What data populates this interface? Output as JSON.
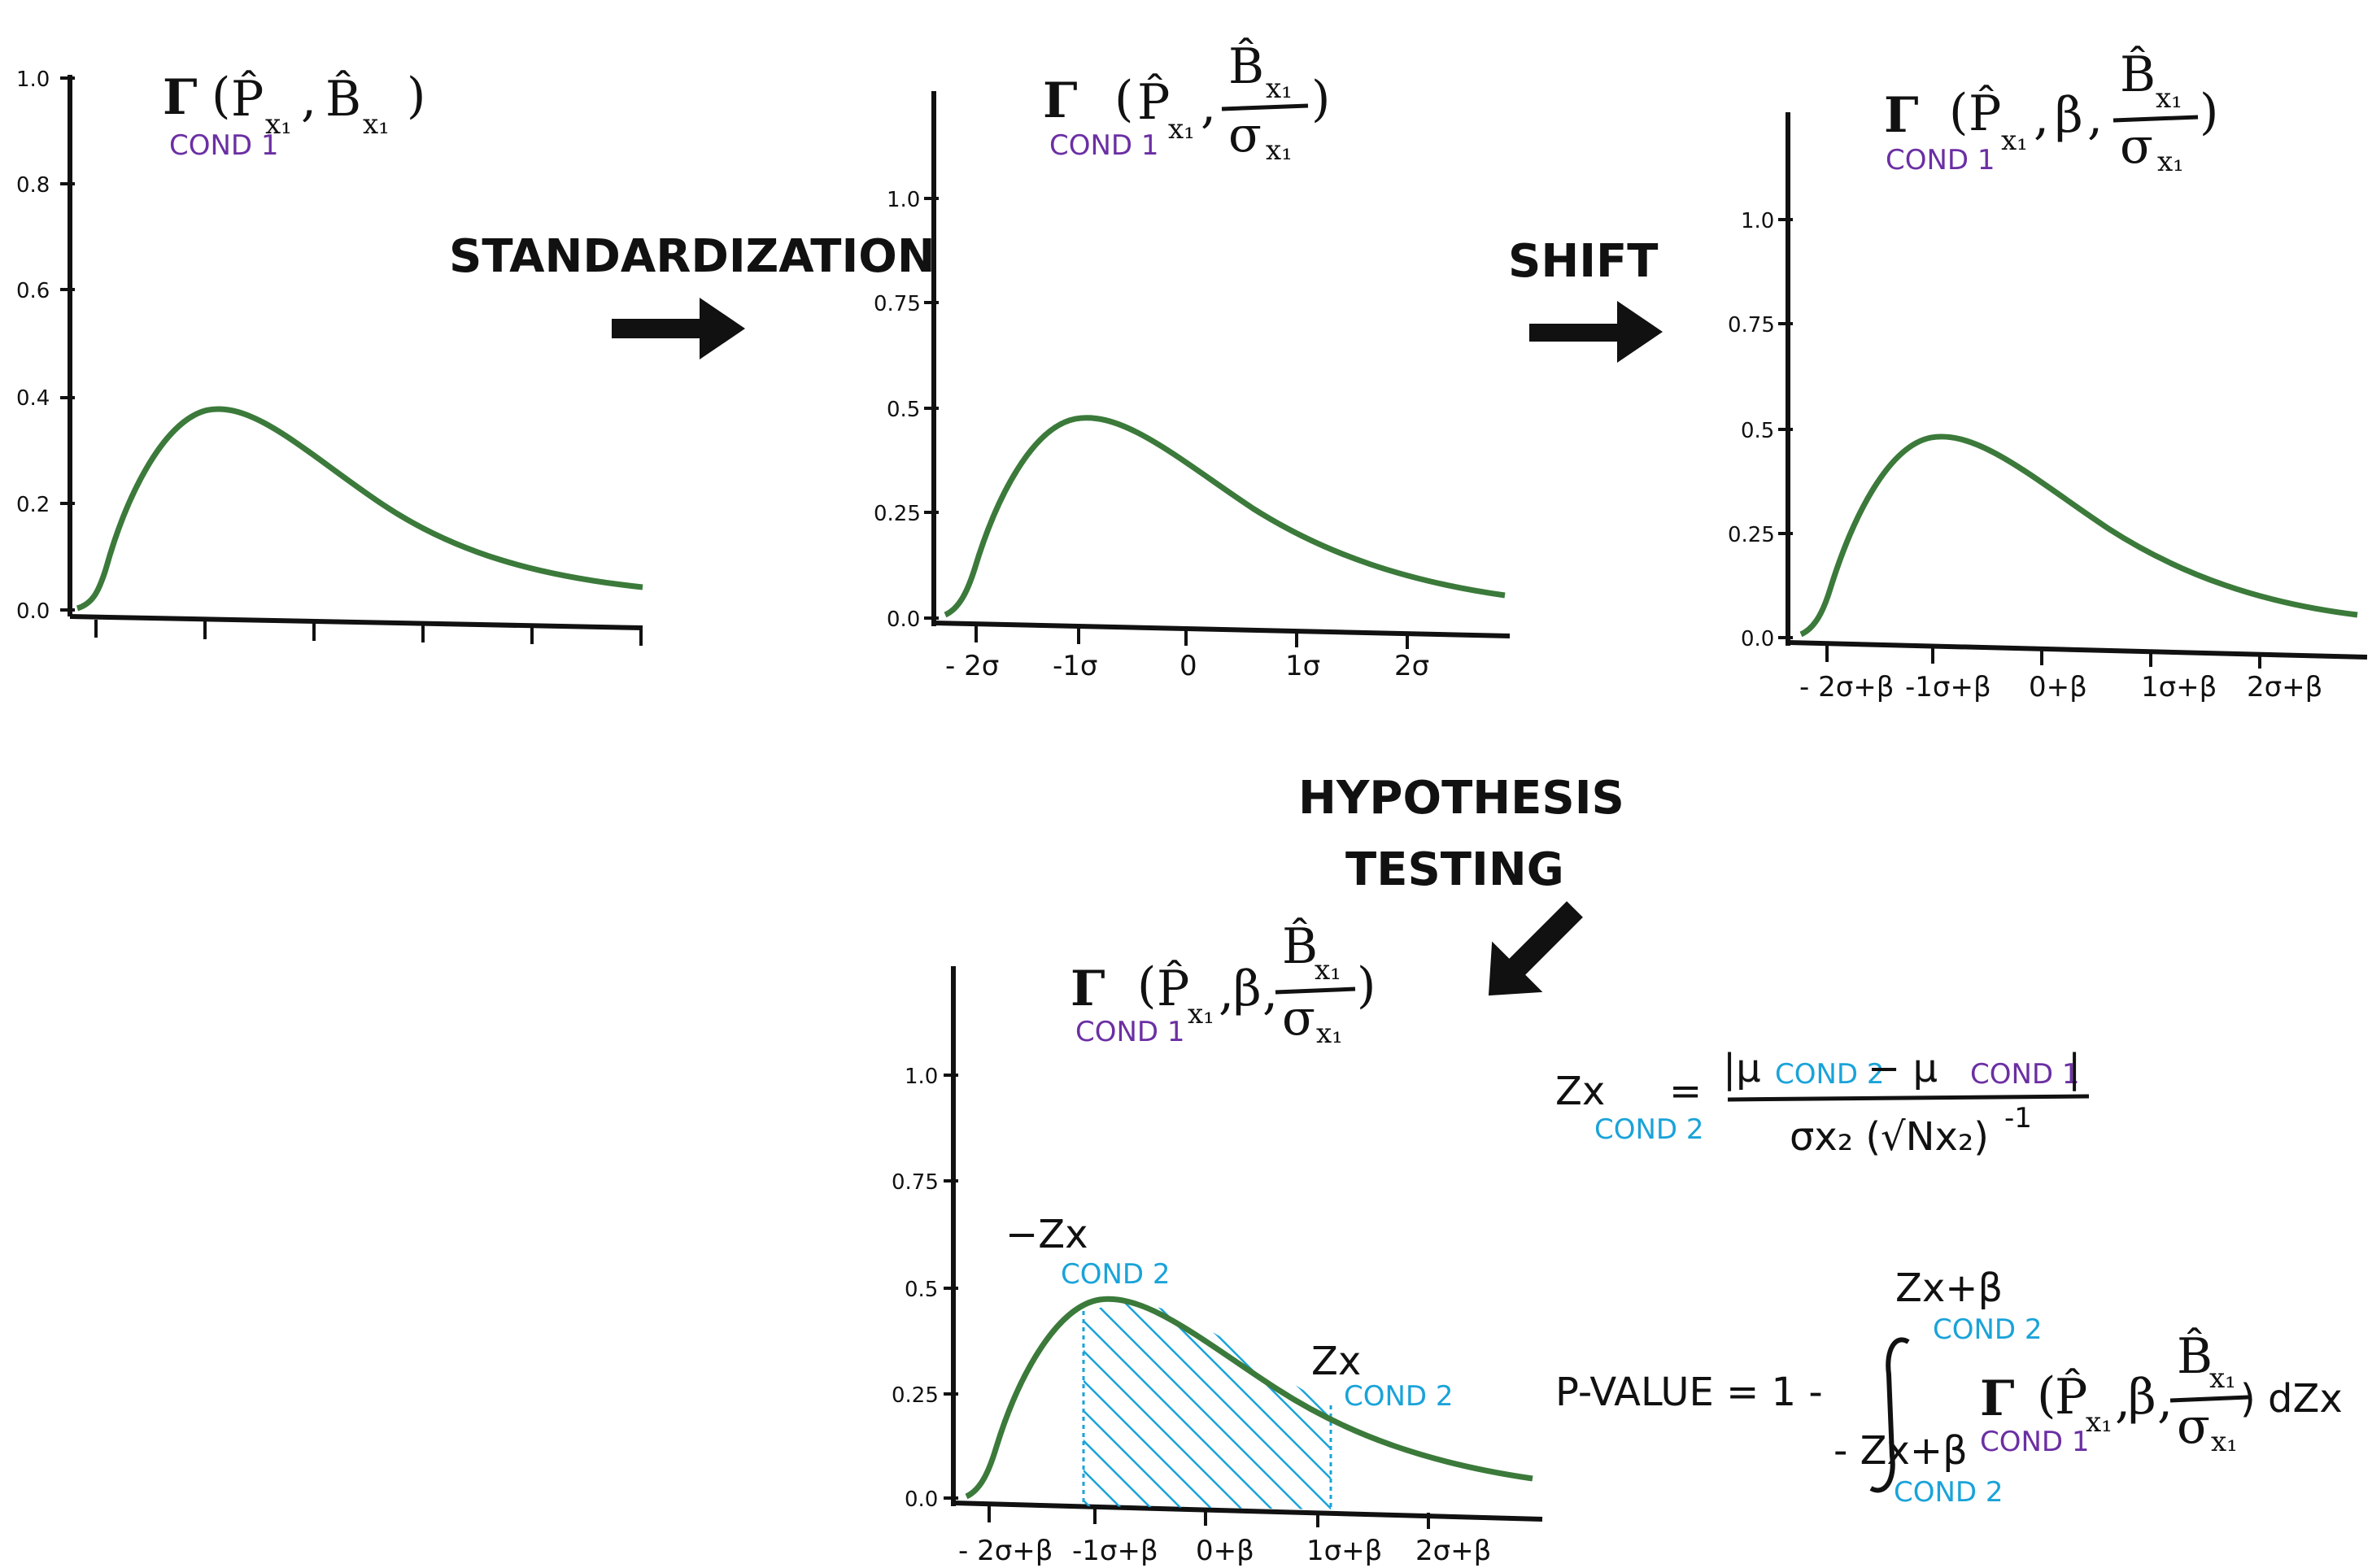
{
  "colors": {
    "curve": "#3b7a3a",
    "cond1": "#6b2fa3",
    "cond2": "#1aa3d9",
    "ink": "#111111"
  },
  "labels": {
    "standardization": "STANDARDIZATION",
    "shift": "SHIFT",
    "hypothesis": "HYPOTHESIS",
    "testing": "TESTING"
  },
  "math": {
    "gamma": "Γ",
    "p_hat": "P̂",
    "b_hat": "B̂",
    "x1": "x₁",
    "beta": "β",
    "sigma": "σ",
    "sigma_x1": "σx₁",
    "cond1": "COND 1",
    "cond2": "COND 2",
    "neg_z": "−Zx",
    "z": "Zx"
  },
  "equations": {
    "z_lhs": "Zx",
    "equals": "=",
    "z_numerator": "|μ",
    "z_num_mid": " − μ",
    "z_num_end": "|",
    "z_denominator": "σx₂ (√Nx₂)",
    "z_exponent": "-1",
    "pvalue_label": "P-VALUE = 1 -",
    "integral_upper": "Zx+β",
    "integral_lower": "- Zx+β",
    "integrand_end": ") dZx"
  },
  "panels": [
    {
      "id": "gamma",
      "y_ticks": [
        "0.0",
        "0.2",
        "0.4",
        "0.6",
        "0.8",
        "1.0"
      ],
      "x_ticks": [
        "",
        "",
        "",
        "",
        "",
        ""
      ]
    },
    {
      "id": "standardized",
      "y_ticks": [
        "0.0",
        "0.25",
        "0.5",
        "0.75",
        "1.0"
      ],
      "x_ticks": [
        "- 2σ",
        "-1σ",
        "0",
        "1σ",
        "2σ"
      ]
    },
    {
      "id": "shifted",
      "y_ticks": [
        "0.0",
        "0.25",
        "0.5",
        "0.75",
        "1.0"
      ],
      "x_ticks": [
        "- 2σ+β",
        "-1σ+β",
        "0+β",
        "1σ+β",
        "2σ+β"
      ]
    },
    {
      "id": "hypothesis",
      "y_ticks": [
        "0.0",
        "0.25",
        "0.5",
        "0.75",
        "1.0"
      ],
      "x_ticks": [
        "- 2σ+β",
        "-1σ+β",
        "0+β",
        "1σ+β",
        "2σ+β"
      ]
    }
  ]
}
